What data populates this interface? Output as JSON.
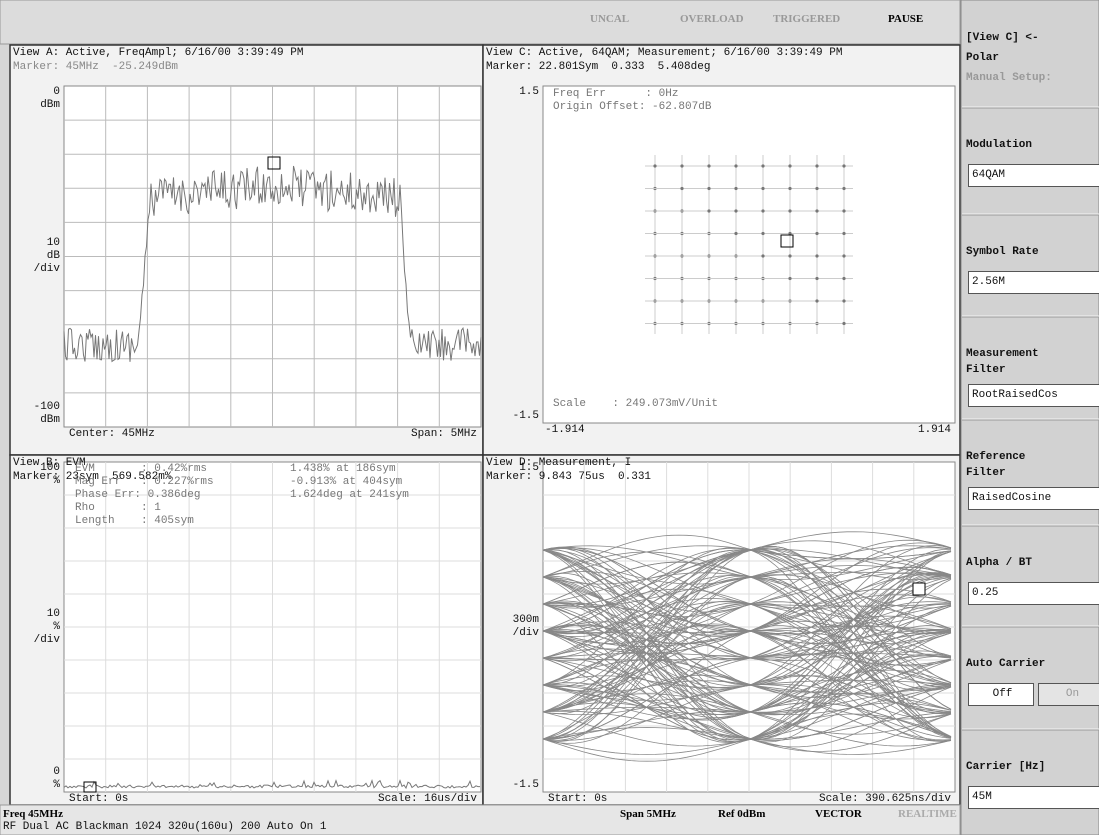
{
  "status_bar": {
    "indicators": [
      "UNCAL",
      "OVERLOAD",
      "TRIGGERED",
      "PAUSE"
    ]
  },
  "views": [
    {
      "title": "View A: Active, FreqAmpl; 6/16/00 3:39:49 PM",
      "marker": "Marker: 45MHz  -25.249dBm",
      "axis_labels": {
        "top": [
          "0",
          "dBm"
        ],
        "middle": [
          "10",
          "dB",
          "/div"
        ],
        "bottom": [
          "-100",
          "dBm"
        ]
      },
      "footer_left": "Center: 45MHz",
      "footer_right": "Span: 5MHz"
    },
    {
      "title": "View C: Active, 64QAM; Measurement; 6/16/00 3:39:49 PM",
      "marker": "Marker: 22.801Sym  0.333  5.408deg",
      "axis_labels": {
        "top": [
          "1.5"
        ],
        "middle": [],
        "bottom": [
          "-1.5"
        ]
      },
      "annotations": [
        "Freq Err      : 0Hz",
        "Origin Offset: -62.807dB"
      ],
      "scale_note": "Scale    : 249.073mV/Unit",
      "footer_left": "-1.914",
      "footer_right": "1.914"
    },
    {
      "title": "View B: EVM",
      "marker": "Marker: 23sym  569.582m%",
      "axis_labels": {
        "top": [
          "100",
          "%"
        ],
        "middle": [
          "10",
          "%",
          "/div"
        ],
        "bottom": [
          "0",
          "%"
        ]
      },
      "table": [
        [
          "EVM       : 0.42%rms",
          "1.438% at 186sym"
        ],
        [
          "Mag Err   : 0.227%rms",
          "-0.913% at 404sym"
        ],
        [
          "Phase Err: 0.386deg",
          "1.624deg at 241sym"
        ],
        [
          "Rho       : 1",
          null
        ],
        [
          "Length    : 405sym",
          null
        ]
      ],
      "footer_left": "Start: 0s",
      "footer_right": "Scale: 16us/div"
    },
    {
      "title": "View D: Measurement, I",
      "marker": "Marker: 9.843 75us  0.331",
      "axis_labels": {
        "top": [
          "1.5"
        ],
        "middle": [
          "300m",
          "/div"
        ],
        "bottom": [
          "-1.5"
        ]
      },
      "footer_left": "Start: 0s",
      "footer_right": "Scale: 390.625ns/div"
    }
  ],
  "bottom_bar": {
    "freq": "Freq 45MHz",
    "span": "Span 5MHz",
    "ref": "Ref 0dBm",
    "mode": "VECTOR",
    "realtime": "REALTIME",
    "settings": "RF Dual AC Blackman 1024 320u(160u) 200 Auto On 1"
  },
  "sidebar": {
    "header": [
      "[View C] <-",
      "Polar",
      "Manual Setup:"
    ],
    "controls": [
      {
        "label": "Modulation",
        "value": "64QAM"
      },
      {
        "label": "Symbol Rate",
        "value": "2.56M"
      },
      {
        "label": "Measurement Filter",
        "value": "RootRaisedCos"
      },
      {
        "label": "Reference Filter",
        "value": "RaisedCosine"
      },
      {
        "label": "Alpha / BT",
        "value": "0.25"
      },
      {
        "label": "Auto Carrier",
        "options": [
          "Off",
          "On"
        ]
      },
      {
        "label": "Carrier [Hz]",
        "value": "45M"
      }
    ]
  }
}
